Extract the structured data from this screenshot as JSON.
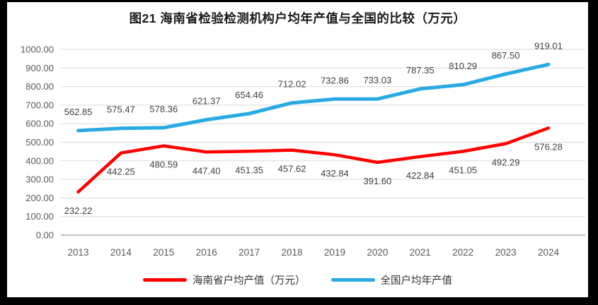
{
  "title": "图21  海南省检验检测机构户均年产值与全国的比较（万元）",
  "colors": {
    "hainan_line": "#ff0000",
    "national_line": "#29abe2",
    "gridline": "#d9d9d9",
    "baseline": "#c0c0c0",
    "axis_text": "#595959",
    "data_label_text": "#404040",
    "frame": "#000000",
    "paper": "#ffffff"
  },
  "chart_data": {
    "type": "line",
    "title": "图21  海南省检验检测机构户均年产值与全国的比较（万元）",
    "categories": [
      "2013",
      "2014",
      "2015",
      "2016",
      "2017",
      "2018",
      "2019",
      "2020",
      "2021",
      "2022",
      "2023",
      "2024"
    ],
    "series": [
      {
        "name": "海南省户均产值（万元）",
        "color": "#ff0000",
        "label_position": "below",
        "values": [
          232.22,
          442.25,
          480.59,
          447.4,
          451.35,
          457.62,
          432.84,
          391.6,
          422.84,
          451.05,
          492.29,
          576.28
        ]
      },
      {
        "name": "全国户均年产值",
        "color": "#29abe2",
        "label_position": "above",
        "values": [
          562.85,
          575.47,
          578.36,
          621.37,
          654.46,
          712.02,
          732.86,
          733.03,
          787.35,
          810.29,
          867.5,
          919.01
        ]
      }
    ],
    "xlabel": "",
    "ylabel": "",
    "ylim": [
      0,
      1000
    ],
    "ytick_step": 100,
    "ytick_labels": [
      "0.00",
      "100.00",
      "200.00",
      "300.00",
      "400.00",
      "500.00",
      "600.00",
      "700.00",
      "800.00",
      "900.00",
      "1000.00"
    ],
    "grid": true,
    "legend_position": "bottom",
    "data_labels": true
  }
}
